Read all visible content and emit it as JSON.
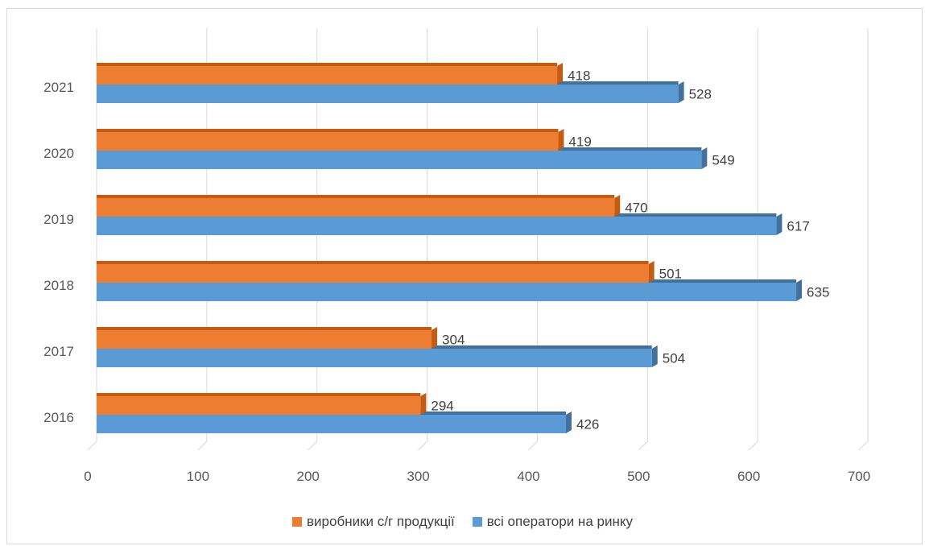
{
  "chart_data": {
    "type": "bar",
    "orientation": "horizontal",
    "style": "3d",
    "categories": [
      "2016",
      "2017",
      "2018",
      "2019",
      "2020",
      "2021"
    ],
    "series": [
      {
        "name": "виробники с/г продукції",
        "values": [
          294,
          304,
          501,
          470,
          419,
          418
        ],
        "color": "#ED7D31",
        "side_color": "#C55A11"
      },
      {
        "name": "всі оператори на ринку",
        "values": [
          426,
          504,
          635,
          617,
          549,
          528
        ],
        "color": "#5B9BD5",
        "side_color": "#41719C"
      }
    ],
    "x_ticks": [
      "0",
      "100",
      "200",
      "300",
      "400",
      "500",
      "600",
      "700"
    ],
    "xlim": [
      0,
      700
    ],
    "grid": true,
    "legend_position": "bottom",
    "data_labels": true
  }
}
